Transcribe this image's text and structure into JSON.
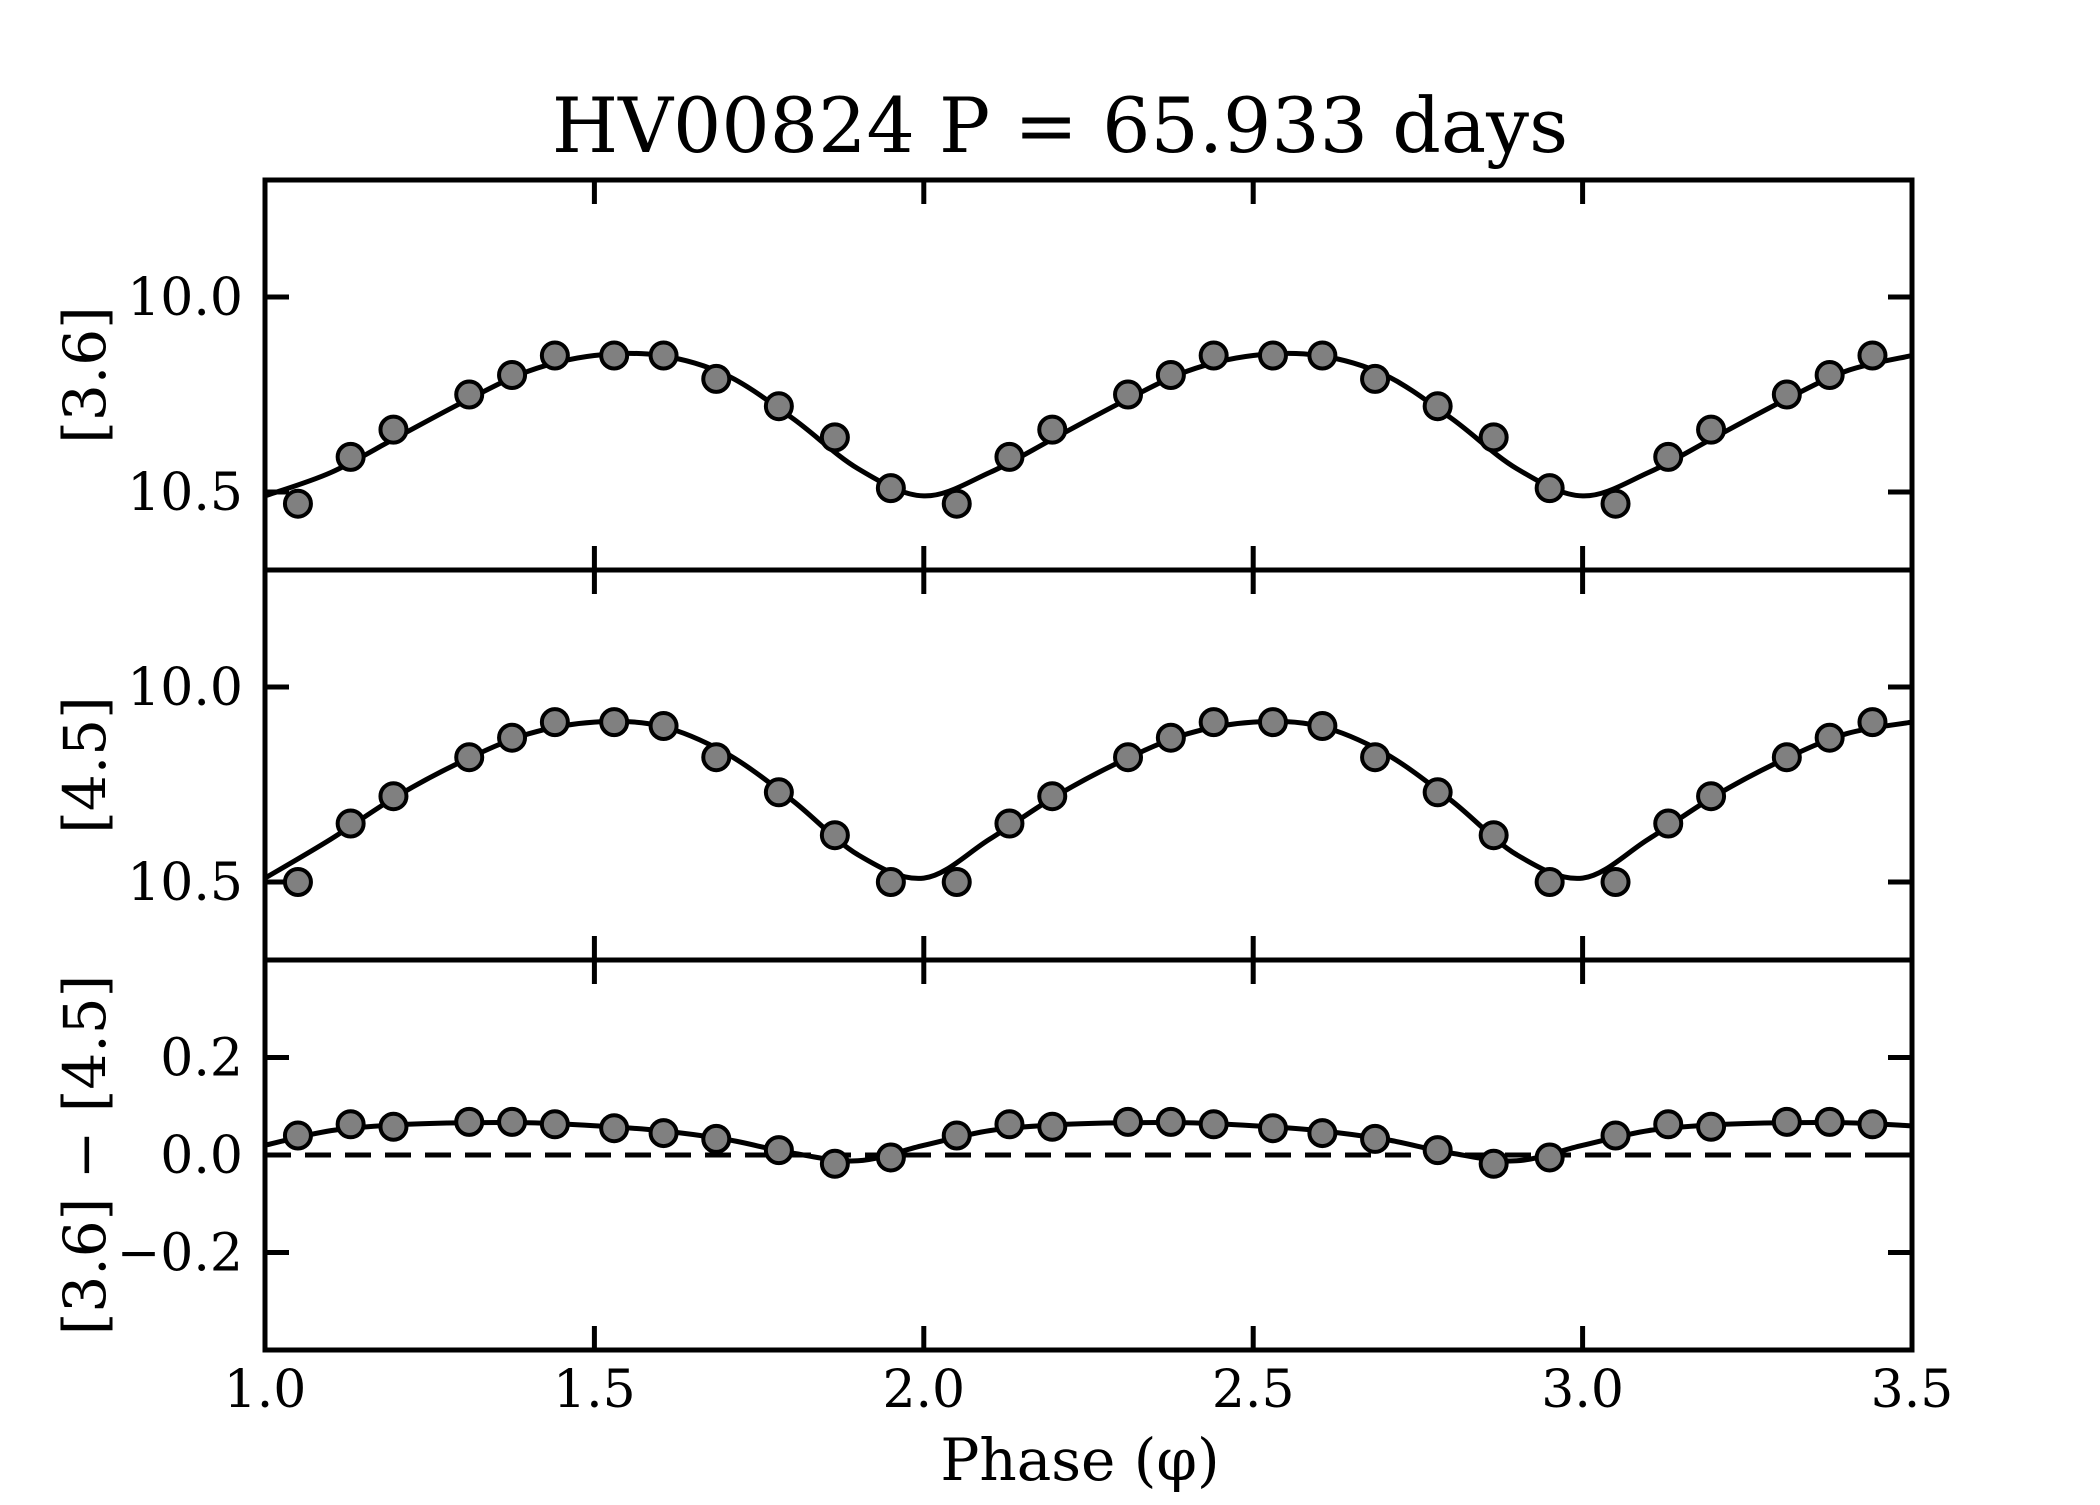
{
  "chart_data": {
    "type": "line",
    "title": "HV00824 P = 65.933 days",
    "xlabel": "Phase (φ)",
    "xlim": [
      1.0,
      3.5
    ],
    "xticks": [
      1.0,
      1.5,
      2.0,
      2.5,
      3.0,
      3.5
    ],
    "xtick_labels": [
      "1.0",
      "1.5",
      "2.0",
      "2.5",
      "3.0",
      "3.5"
    ],
    "panels": [
      {
        "id": "panel-36",
        "ylabel": "[3.6]",
        "ylim": [
          10.7,
          9.7
        ],
        "inverted": true,
        "yticks": [
          10.0,
          10.5
        ],
        "ytick_labels": [
          "10.0",
          "10.5"
        ],
        "reference_line": null,
        "series": [
          {
            "name": "[3.6] observations",
            "x": [
              1.05,
              1.13,
              1.195,
              1.31,
              1.375,
              1.44,
              1.53,
              1.605,
              1.685,
              1.78,
              1.865,
              1.95,
              2.05,
              2.13,
              2.195,
              2.31,
              2.375,
              2.44,
              2.53,
              2.605,
              2.685,
              2.78,
              2.865,
              2.95,
              3.05,
              3.13,
              3.195,
              3.31,
              3.375,
              3.44
            ],
            "y": [
              10.53,
              10.41,
              10.34,
              10.25,
              10.2,
              10.15,
              10.15,
              10.15,
              10.21,
              10.28,
              10.36,
              10.49,
              10.53,
              10.41,
              10.34,
              10.25,
              10.2,
              10.15,
              10.15,
              10.15,
              10.21,
              10.28,
              10.36,
              10.49,
              10.53,
              10.41,
              10.34,
              10.25,
              10.2,
              10.15
            ]
          },
          {
            "name": "[3.6] fit",
            "x": [
              1.0,
              1.1,
              1.2,
              1.3,
              1.4,
              1.5,
              1.6,
              1.7,
              1.8,
              1.9,
              2.0,
              2.1,
              2.2,
              2.3,
              2.4,
              2.5,
              2.6,
              2.7,
              2.8,
              2.9,
              3.0,
              3.1,
              3.2,
              3.3,
              3.4,
              3.5
            ],
            "y": [
              10.51,
              10.45,
              10.36,
              10.27,
              10.19,
              10.15,
              10.15,
              10.2,
              10.31,
              10.44,
              10.51,
              10.45,
              10.36,
              10.27,
              10.19,
              10.15,
              10.15,
              10.2,
              10.31,
              10.44,
              10.51,
              10.45,
              10.36,
              10.27,
              10.19,
              10.15
            ]
          }
        ]
      },
      {
        "id": "panel-45",
        "ylabel": "[4.5]",
        "ylim": [
          10.7,
          9.7
        ],
        "inverted": true,
        "yticks": [
          10.0,
          10.5
        ],
        "ytick_labels": [
          "10.0",
          "10.5"
        ],
        "reference_line": null,
        "series": [
          {
            "name": "[4.5] observations",
            "x": [
              1.05,
              1.13,
              1.195,
              1.31,
              1.375,
              1.44,
              1.53,
              1.605,
              1.685,
              1.78,
              1.865,
              1.95,
              2.05,
              2.13,
              2.195,
              2.31,
              2.375,
              2.44,
              2.53,
              2.605,
              2.685,
              2.78,
              2.865,
              2.95,
              3.05,
              3.13,
              3.195,
              3.31,
              3.375,
              3.44
            ],
            "y": [
              10.5,
              10.35,
              10.28,
              10.18,
              10.13,
              10.09,
              10.09,
              10.1,
              10.18,
              10.27,
              10.38,
              10.5,
              10.5,
              10.35,
              10.28,
              10.18,
              10.13,
              10.09,
              10.09,
              10.1,
              10.18,
              10.27,
              10.38,
              10.5,
              10.5,
              10.35,
              10.28,
              10.18,
              10.13,
              10.09
            ]
          },
          {
            "name": "[4.5] fit",
            "x": [
              1.0,
              1.1,
              1.2,
              1.3,
              1.4,
              1.5,
              1.6,
              1.7,
              1.8,
              1.9,
              2.0,
              2.1,
              2.2,
              2.3,
              2.4,
              2.5,
              2.6,
              2.7,
              2.8,
              2.9,
              3.0,
              3.1,
              3.2,
              3.3,
              3.4,
              3.5
            ],
            "y": [
              10.49,
              10.39,
              10.28,
              10.19,
              10.12,
              10.09,
              10.1,
              10.17,
              10.29,
              10.43,
              10.49,
              10.39,
              10.28,
              10.19,
              10.12,
              10.09,
              10.1,
              10.17,
              10.29,
              10.43,
              10.49,
              10.39,
              10.28,
              10.19,
              10.12,
              10.09
            ]
          }
        ]
      },
      {
        "id": "panel-color",
        "ylabel": "[3.6] − [4.5]",
        "ylim": [
          -0.4,
          0.4
        ],
        "inverted": false,
        "yticks": [
          -0.2,
          0.0,
          0.2
        ],
        "ytick_labels": [
          "−0.2",
          "0.0",
          "0.2"
        ],
        "reference_line": 0.0,
        "series": [
          {
            "name": "[3.6] − [4.5] observations",
            "x": [
              1.05,
              1.13,
              1.195,
              1.31,
              1.375,
              1.44,
              1.53,
              1.605,
              1.685,
              1.78,
              1.865,
              1.95,
              2.05,
              2.13,
              2.195,
              2.31,
              2.375,
              2.44,
              2.53,
              2.605,
              2.685,
              2.78,
              2.865,
              2.95,
              3.05,
              3.13,
              3.195,
              3.31,
              3.375,
              3.44
            ],
            "y": [
              0.04,
              0.063,
              0.058,
              0.068,
              0.068,
              0.063,
              0.055,
              0.045,
              0.033,
              0.01,
              -0.018,
              -0.005,
              0.04,
              0.063,
              0.058,
              0.068,
              0.068,
              0.063,
              0.055,
              0.045,
              0.033,
              0.01,
              -0.018,
              -0.005,
              0.04,
              0.063,
              0.058,
              0.068,
              0.068,
              0.063
            ]
          },
          {
            "name": "[3.6] − [4.5] fit",
            "x": [
              1.0,
              1.1,
              1.2,
              1.3,
              1.4,
              1.5,
              1.6,
              1.7,
              1.8,
              1.9,
              2.0,
              2.1,
              2.2,
              2.3,
              2.4,
              2.5,
              2.6,
              2.7,
              2.8,
              2.9,
              3.0,
              3.1,
              3.2,
              3.3,
              3.4,
              3.5
            ],
            "y": [
              0.02,
              0.05,
              0.062,
              0.066,
              0.066,
              0.06,
              0.05,
              0.032,
              0.004,
              -0.012,
              0.02,
              0.05,
              0.062,
              0.066,
              0.066,
              0.06,
              0.05,
              0.032,
              0.004,
              -0.012,
              0.02,
              0.05,
              0.062,
              0.066,
              0.066,
              0.06
            ]
          }
        ]
      }
    ]
  },
  "colors": {
    "marker_fill": "#808080",
    "ink": "#000000",
    "background": "#ffffff"
  }
}
